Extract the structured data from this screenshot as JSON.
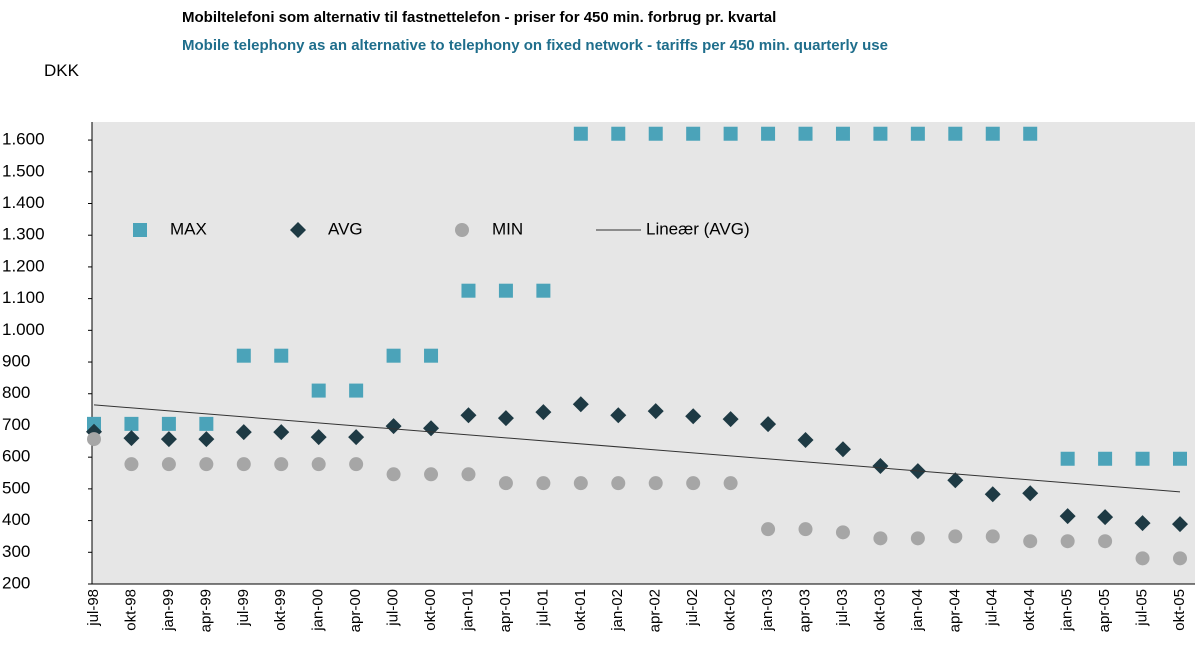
{
  "chart_data": {
    "type": "scatter",
    "title": "Mobiltelefoni som alternativ til fastnettelefon - priser for 450 min. forbrug pr. kvartal",
    "subtitle": "Mobile telephony as an alternative to telephony on fixed network - tariffs per 450 min. quarterly use",
    "y_label": "DKK",
    "categories": [
      "jul-98",
      "okt-98",
      "jan-99",
      "apr-99",
      "jul-99",
      "okt-99",
      "jan-00",
      "apr-00",
      "jul-00",
      "okt-00",
      "jan-01",
      "apr-01",
      "jul-01",
      "okt-01",
      "jan-02",
      "apr-02",
      "jul-02",
      "okt-02",
      "jan-03",
      "apr-03",
      "jul-03",
      "okt-03",
      "jan-04",
      "apr-04",
      "jul-04",
      "okt-04",
      "jan-05",
      "apr-05",
      "jul-05",
      "okt-05"
    ],
    "series": [
      {
        "name": "MAX",
        "marker": "square",
        "color": "#4ba3b9",
        "values": [
          705,
          705,
          705,
          705,
          920,
          920,
          810,
          810,
          920,
          920,
          1125,
          1125,
          1125,
          1620,
          1620,
          1620,
          1620,
          1620,
          1620,
          1620,
          1620,
          1620,
          1620,
          1620,
          1620,
          1620,
          595,
          595,
          595,
          595
        ]
      },
      {
        "name": "AVG",
        "marker": "diamond",
        "color": "#1e3a44",
        "values": [
          680,
          660,
          657,
          657,
          679,
          679,
          663,
          663,
          698,
          691,
          732,
          723,
          742,
          767,
          732,
          745,
          729,
          720,
          704,
          654,
          625,
          572,
          556,
          527,
          483,
          486,
          414,
          411,
          392,
          389
        ]
      },
      {
        "name": "MIN",
        "marker": "circle",
        "color": "#a6a6a6",
        "values": [
          657,
          578,
          578,
          578,
          578,
          578,
          578,
          578,
          546,
          546,
          546,
          518,
          518,
          518,
          518,
          518,
          518,
          518,
          373,
          373,
          363,
          344,
          344,
          350,
          350,
          335,
          335,
          335,
          281,
          281
        ]
      }
    ],
    "trendline": {
      "name": "Lineær (AVG)",
      "series": 1,
      "color": "#333333"
    },
    "ylim": [
      200,
      1657
    ],
    "yticks": [
      200,
      300,
      400,
      500,
      600,
      700,
      800,
      900,
      {
        "value": 1000,
        "label": "1.000"
      },
      {
        "value": 1100,
        "label": "1.100"
      },
      {
        "value": 1200,
        "label": "1.200"
      },
      {
        "value": 1300,
        "label": "1.300"
      },
      {
        "value": 1400,
        "label": "1.400"
      },
      {
        "value": 1500,
        "label": "1.500"
      },
      {
        "value": 1600,
        "label": "1.600"
      }
    ],
    "grid": false,
    "legend": "top-left"
  }
}
